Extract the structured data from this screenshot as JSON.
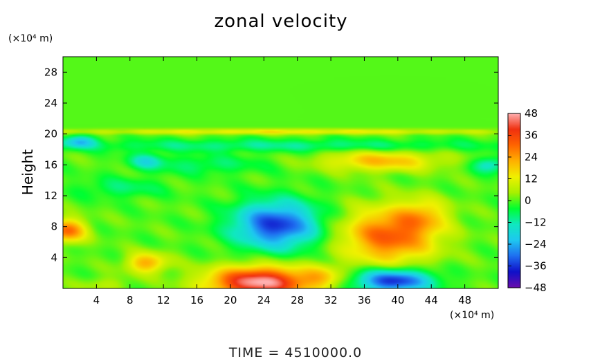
{
  "chart_data": {
    "type": "heatmap",
    "title": "zonal velocity",
    "xlabel": "",
    "ylabel": "Height",
    "x_unit": "(×10⁴ m)",
    "y_unit": "(×10⁴ m)",
    "xlim": [
      0,
      52
    ],
    "ylim": [
      0,
      30
    ],
    "x_ticks": [
      4,
      8,
      12,
      16,
      20,
      24,
      28,
      32,
      36,
      40,
      44,
      48
    ],
    "y_ticks": [
      4,
      8,
      12,
      16,
      20,
      24,
      28
    ],
    "colorbar": {
      "min": -48,
      "max": 48,
      "ticks": [
        48,
        36,
        24,
        12,
        0,
        -12,
        -24,
        -36,
        -48
      ],
      "colors": [
        "#6a0dad",
        "#1010c8",
        "#1e6ef0",
        "#1ec8f0",
        "#10e8c0",
        "#00ff30",
        "#a8f000",
        "#f0f000",
        "#ffb000",
        "#ff6400",
        "#f03010",
        "#ffb0b0"
      ]
    },
    "features": [
      {
        "kind": "jet",
        "x": 23.5,
        "y": 0.8,
        "rx": 6,
        "ry": 2.0,
        "value": 48
      },
      {
        "kind": "jet",
        "x": 39,
        "y": 6.8,
        "rx": 5.5,
        "ry": 3.5,
        "value": 32
      },
      {
        "kind": "jet",
        "x": 0.5,
        "y": 7.5,
        "rx": 2.2,
        "ry": 1.5,
        "value": 30
      },
      {
        "kind": "jet",
        "x": 10,
        "y": 3.3,
        "rx": 2.4,
        "ry": 1.3,
        "value": 22
      },
      {
        "kind": "jet",
        "x": 38,
        "y": 16.5,
        "rx": 7,
        "ry": 1.3,
        "value": 20
      },
      {
        "kind": "jet",
        "x": 26,
        "y": 20.3,
        "rx": 26,
        "ry": 0.35,
        "value": 14
      },
      {
        "kind": "jet",
        "x": 43,
        "y": 9.5,
        "rx": 3,
        "ry": 2.2,
        "value": 14
      },
      {
        "kind": "jet",
        "x": 31,
        "y": 1.5,
        "rx": 2.5,
        "ry": 1.5,
        "value": 12
      },
      {
        "kind": "jet",
        "x": 25.5,
        "y": 8.2,
        "rx": 5,
        "ry": 3,
        "value": -36
      },
      {
        "kind": "jet",
        "x": 39.5,
        "y": 1.0,
        "rx": 4.5,
        "ry": 1.5,
        "value": -38
      },
      {
        "kind": "jet",
        "x": 26,
        "y": 18.5,
        "rx": 26,
        "ry": 0.8,
        "value": -10
      },
      {
        "kind": "jet",
        "x": 2,
        "y": 19,
        "rx": 2,
        "ry": 0.8,
        "value": -20
      },
      {
        "kind": "jet",
        "x": 17,
        "y": 16,
        "rx": 7,
        "ry": 1.2,
        "value": -8
      },
      {
        "kind": "jet",
        "x": 10,
        "y": 16.5,
        "rx": 2,
        "ry": 1,
        "value": -14
      },
      {
        "kind": "jet",
        "x": 7,
        "y": 13,
        "rx": 5,
        "ry": 1.3,
        "value": -8
      },
      {
        "kind": "jet",
        "x": 51,
        "y": 16,
        "rx": 2,
        "ry": 1,
        "value": -16
      },
      {
        "kind": "jet",
        "x": 5,
        "y": 0.5,
        "rx": 3,
        "ry": 1,
        "value": 6
      }
    ]
  },
  "time_label": "TIME  =  4510000.0"
}
